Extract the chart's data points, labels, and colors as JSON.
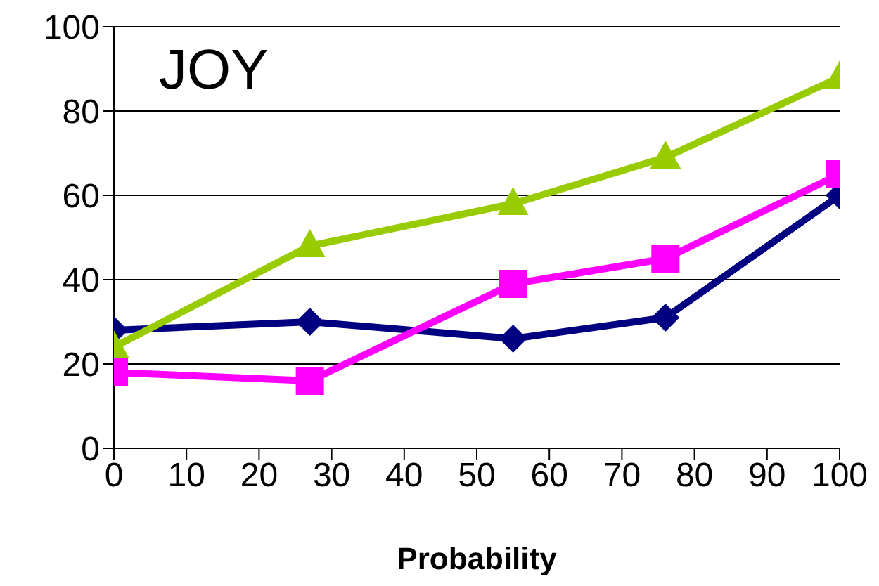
{
  "chart_data": {
    "type": "line",
    "title": "JOY",
    "xlabel": "Probability",
    "x": [
      0,
      27,
      55,
      76,
      100
    ],
    "series": [
      {
        "color": "#000080",
        "marker": "diamond",
        "values": [
          28,
          30,
          26,
          31,
          60
        ]
      },
      {
        "color": "#ff00ff",
        "marker": "square",
        "values": [
          18,
          16,
          39,
          45,
          65
        ]
      },
      {
        "color": "#99cc00",
        "marker": "triangle",
        "values": [
          24,
          48,
          58,
          69,
          88
        ]
      }
    ],
    "xlim": [
      0,
      100
    ],
    "xticks": [
      0,
      10,
      20,
      30,
      40,
      50,
      60,
      70,
      80,
      90,
      100
    ],
    "ylim": [
      0,
      100
    ],
    "yticks": [
      0,
      20,
      40,
      60,
      80,
      100
    ],
    "grid": "y",
    "legend": false
  }
}
